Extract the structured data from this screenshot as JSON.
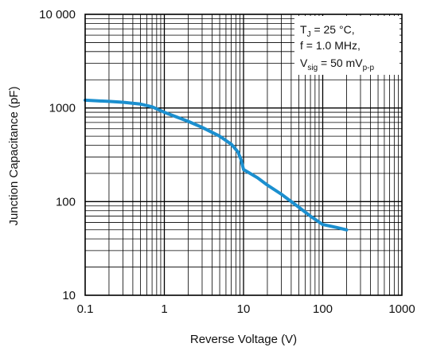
{
  "chart_data": {
    "type": "line",
    "title": "",
    "xlabel": "Reverse Voltage (V)",
    "ylabel": "Junction Capacitance (pF)",
    "x_scale": "log",
    "y_scale": "log",
    "xlim": [
      0.1,
      1000
    ],
    "ylim": [
      10,
      10000
    ],
    "grid": true,
    "x_ticks": [
      "0.1",
      "1",
      "10",
      "100",
      "1000"
    ],
    "y_ticks": [
      "10",
      "100",
      "1000",
      "10 000"
    ],
    "annotation": {
      "line1_main": "T",
      "line1_sub": "J",
      "line1_rest": " = 25 °C,",
      "line2": "f = 1.0 MHz,",
      "line3_main": "V",
      "line3_sub": "sig",
      "line3_rest": " = 50 mV",
      "line3_sub2": "p-p"
    },
    "series": [
      {
        "color": "#1b8fcf",
        "points": [
          [
            0.1,
            1210
          ],
          [
            0.2,
            1175
          ],
          [
            0.3,
            1150
          ],
          [
            0.5,
            1100
          ],
          [
            0.7,
            1030
          ],
          [
            1.0,
            900
          ],
          [
            2.0,
            720
          ],
          [
            3.0,
            620
          ],
          [
            5.0,
            500
          ],
          [
            7.0,
            410
          ],
          [
            8.5,
            340
          ],
          [
            9.3,
            280
          ],
          [
            10,
            220
          ],
          [
            15,
            180
          ],
          [
            20,
            150
          ],
          [
            30,
            120
          ],
          [
            50,
            87
          ],
          [
            70,
            70
          ],
          [
            100,
            57
          ],
          [
            150,
            53
          ],
          [
            200,
            50
          ]
        ]
      }
    ]
  },
  "colors": {
    "frame": "#000000",
    "grid": "#000000",
    "curve": "#1b8fcf"
  }
}
